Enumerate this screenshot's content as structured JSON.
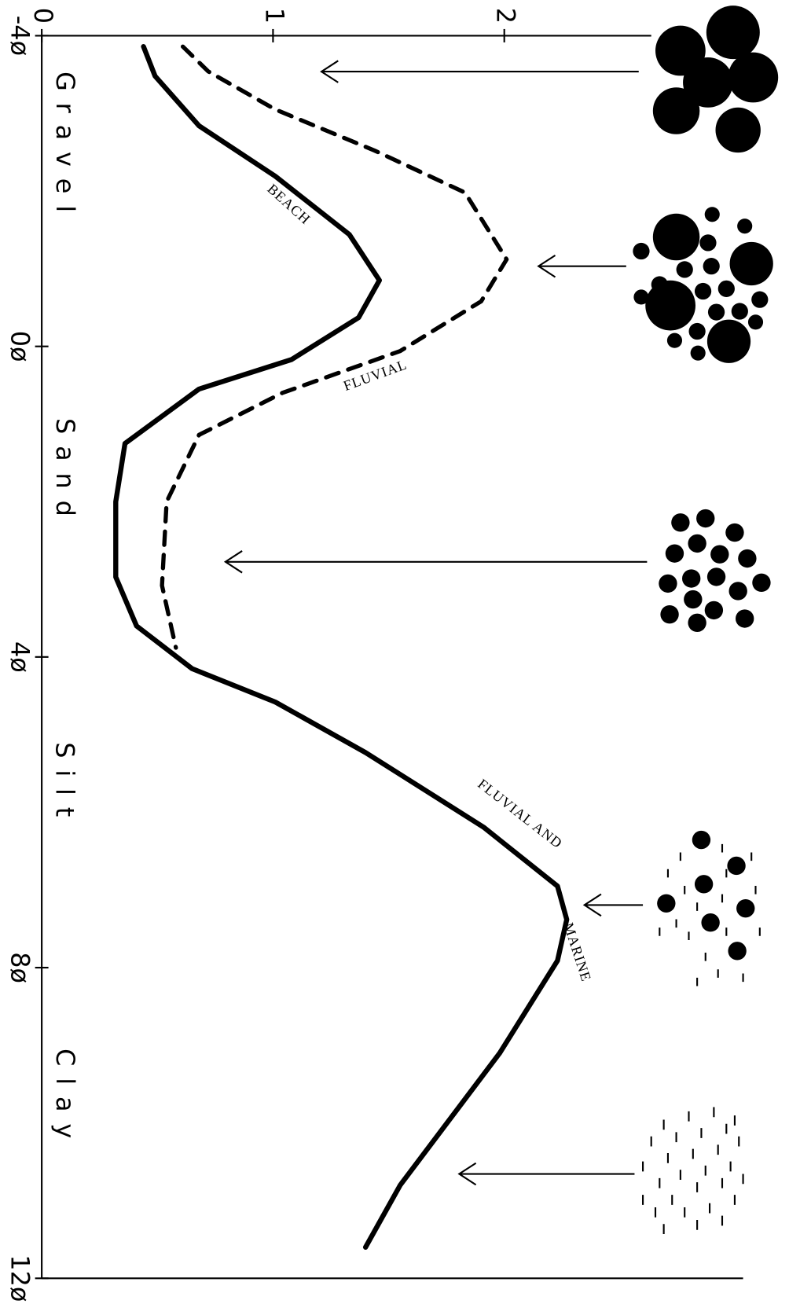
{
  "chart_data": {
    "type": "line",
    "orientation": "rotated",
    "xlim": [
      -4,
      12
    ],
    "xticks": [
      {
        "value": -4,
        "label": "-4ø"
      },
      {
        "value": 0,
        "label": "0ø"
      },
      {
        "value": 4,
        "label": "4ø"
      },
      {
        "value": 8,
        "label": "8ø"
      },
      {
        "value": 12,
        "label": "12ø"
      }
    ],
    "ylim": [
      0,
      3
    ],
    "yticks": [
      0,
      1,
      2
    ],
    "size_classes": [
      "Gravel",
      "Sand",
      "Silt",
      "Clay"
    ],
    "annotations": [
      "BEACH",
      "FLUVIAL",
      "FLUVIAL AND",
      "MARINE"
    ],
    "series": [
      {
        "color": "#000000",
        "dashed": false,
        "x": [
          -3.86,
          -3.48,
          -2.84,
          -2.19,
          -1.44,
          -0.85,
          -0.37,
          0.17,
          0.55,
          1.25,
          2.0,
          2.97,
          3.6,
          4.15,
          4.58,
          5.23,
          6.19,
          6.95,
          7.38,
          7.91,
          9.1,
          10.8,
          11.6
        ],
        "values": [
          0.44,
          0.49,
          0.68,
          1.01,
          1.33,
          1.46,
          1.37,
          1.08,
          0.68,
          0.36,
          0.32,
          0.32,
          0.41,
          0.65,
          1.01,
          1.4,
          1.91,
          2.23,
          2.27,
          2.23,
          1.98,
          1.55,
          1.4
        ]
      },
      {
        "color": "#000000",
        "dashed": true,
        "x": [
          -3.86,
          -3.54,
          -3.05,
          -2.52,
          -1.98,
          -1.12,
          -0.58,
          0.06,
          0.6,
          1.14,
          2.0,
          3.08,
          3.88
        ],
        "values": [
          0.61,
          0.72,
          1.01,
          1.44,
          1.83,
          2.01,
          1.9,
          1.55,
          1.04,
          0.68,
          0.54,
          0.52,
          0.58
        ]
      }
    ]
  }
}
